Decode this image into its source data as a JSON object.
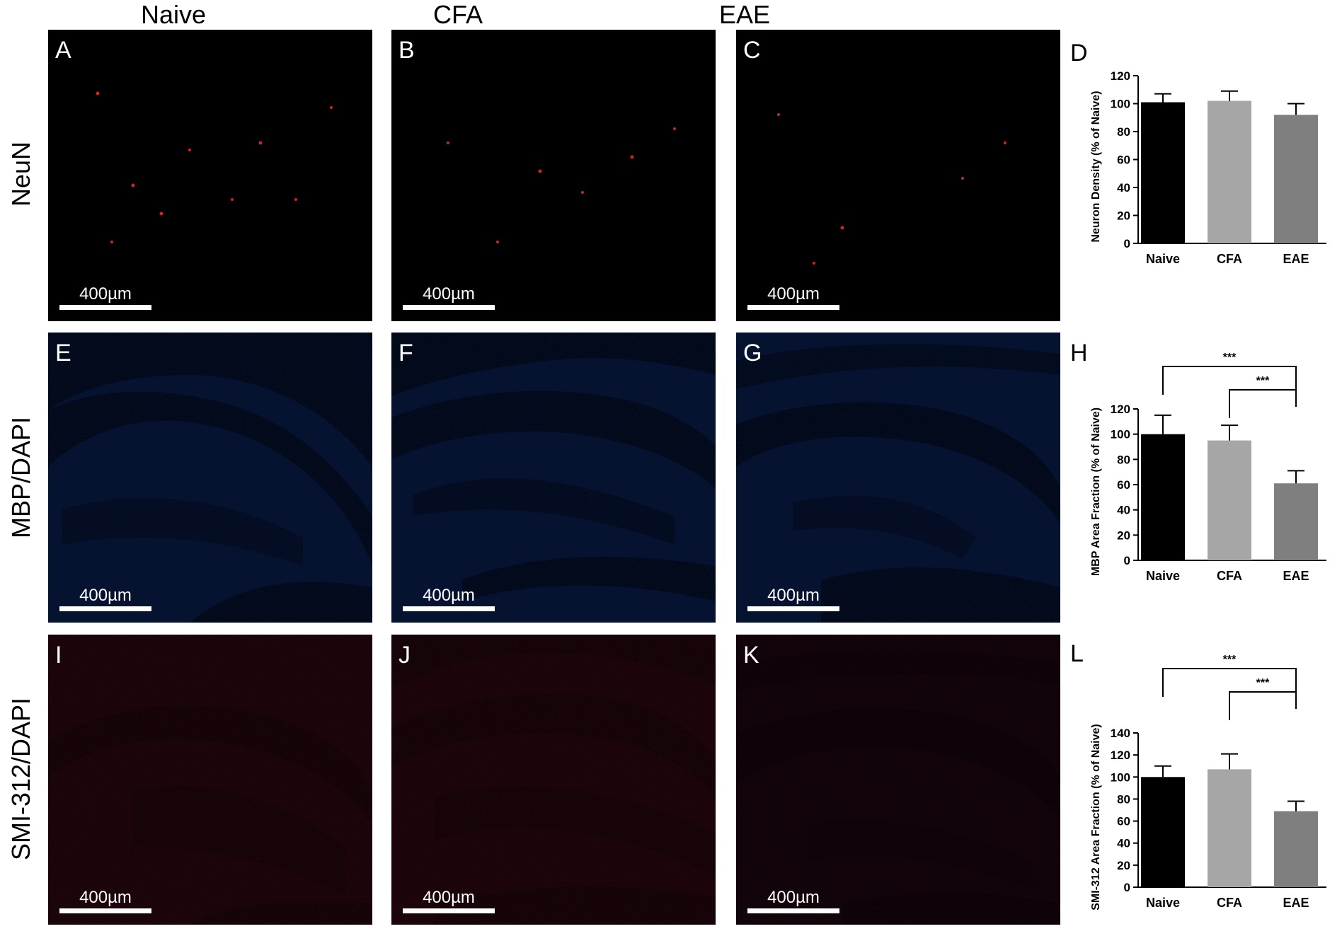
{
  "columns": [
    "Naive",
    "CFA",
    "EAE"
  ],
  "rows": [
    {
      "label": "NeuN",
      "stain": "neun",
      "panels": [
        "A",
        "B",
        "C"
      ]
    },
    {
      "label": "MBP/DAPI",
      "stain": "mbp",
      "panels": [
        "E",
        "F",
        "G"
      ]
    },
    {
      "label": "SMI-312/DAPI",
      "stain": "smi",
      "panels": [
        "I",
        "J",
        "K"
      ]
    }
  ],
  "scale_bar": "400µm",
  "colors": {
    "neun": "#ff1a1a",
    "mbp_green": "#6cff4a",
    "dapi_blue": "#2a3cff",
    "smi_red": "#e01818",
    "bar_naive": "#000000",
    "bar_cfa": "#a6a6a6",
    "bar_eae": "#7f7f7f"
  },
  "chart_data": [
    {
      "panel": "D",
      "type": "bar",
      "categories": [
        "Naive",
        "CFA",
        "EAE"
      ],
      "values": [
        101,
        102,
        92
      ],
      "errors": [
        6,
        7,
        8
      ],
      "ylabel": "Neuron Density (% of Naive)",
      "ylim": [
        0,
        120
      ],
      "yticks": [
        0,
        20,
        40,
        60,
        80,
        100,
        120
      ],
      "significance": []
    },
    {
      "panel": "H",
      "type": "bar",
      "categories": [
        "Naive",
        "CFA",
        "EAE"
      ],
      "values": [
        100,
        95,
        61
      ],
      "errors": [
        15,
        12,
        10
      ],
      "ylabel": "MBP Area Fraction (% of Naive)",
      "ylim": [
        0,
        120
      ],
      "yticks": [
        0,
        20,
        40,
        60,
        80,
        100,
        120
      ],
      "significance": [
        {
          "from": "Naive",
          "to": "EAE",
          "label": "***"
        },
        {
          "from": "CFA",
          "to": "EAE",
          "label": "***"
        }
      ]
    },
    {
      "panel": "L",
      "type": "bar",
      "categories": [
        "Naive",
        "CFA",
        "EAE"
      ],
      "values": [
        100,
        107,
        69
      ],
      "errors": [
        10,
        14,
        9
      ],
      "ylabel": "SMI-312 Area Fraction (% of Naive)",
      "ylim": [
        0,
        140
      ],
      "yticks": [
        0,
        20,
        40,
        60,
        80,
        100,
        120,
        140
      ],
      "significance": [
        {
          "from": "Naive",
          "to": "EAE",
          "label": "***"
        },
        {
          "from": "CFA",
          "to": "EAE",
          "label": "***"
        }
      ]
    }
  ]
}
